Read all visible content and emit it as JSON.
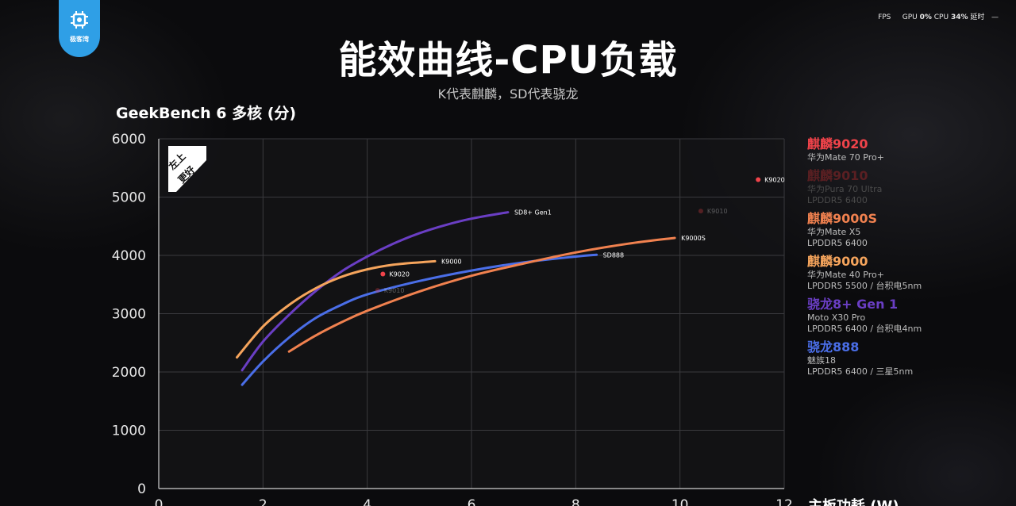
{
  "hud": {
    "fps_label": "FPS",
    "gpu_label": "GPU",
    "gpu_value": "0",
    "gpu_unit": "%",
    "cpu_label": "CPU",
    "cpu_value": "34",
    "cpu_unit": "%",
    "latency_label": "延时",
    "dash": "—"
  },
  "logo": {
    "text": "极客湾",
    "icon": "chip-icon",
    "color": "#2f9fe6"
  },
  "title": "能效曲线-CPU负载",
  "subtitle": "K代表麒麟，SD代表骁龙",
  "badge": {
    "line1": "左上",
    "line2": "更好"
  },
  "legend": [
    {
      "name": "麒麟9020",
      "color": "#f0434a",
      "dim": false,
      "lines": [
        "华为Mate 70 Pro+"
      ]
    },
    {
      "name": "麒麟9010",
      "color": "#5a1f22",
      "dim": true,
      "lines": [
        "华为Pura 70 Ultra",
        "LPDDR5 6400"
      ]
    },
    {
      "name": "麒麟9000S",
      "color": "#f0814f",
      "dim": false,
      "lines": [
        "华为Mate X5",
        "LPDDR5 6400"
      ]
    },
    {
      "name": "麒麟9000",
      "color": "#f5a45c",
      "dim": false,
      "lines": [
        "华为Mate 40 Pro+",
        "LPDDR5 5500 / 台积电5nm"
      ]
    },
    {
      "name": "骁龙8+ Gen 1",
      "color": "#6a3ec4",
      "dim": false,
      "lines": [
        "Moto X30 Pro",
        "LPDDR5 6400 / 台积电4nm"
      ]
    },
    {
      "name": "骁龙888",
      "color": "#4a6ee8",
      "dim": false,
      "lines": [
        "魅族18",
        "LPDDR5 6400 / 三星5nm"
      ]
    }
  ],
  "chart_data": {
    "type": "line",
    "title": "GeekBench 6 多核 (分)",
    "xlabel": "主板功耗 (W)",
    "ylabel": "GeekBench 6 多核 (分)",
    "xlim": [
      0,
      12
    ],
    "ylim": [
      0,
      6000
    ],
    "x_ticks": [
      0,
      2,
      4,
      6,
      8,
      10,
      12
    ],
    "y_ticks": [
      0,
      1000,
      2000,
      3000,
      4000,
      5000,
      6000
    ],
    "grid": true,
    "series": [
      {
        "name": "SD8+ Gen1",
        "color": "#6a3ec4",
        "opacity": 1,
        "points": [
          [
            1.6,
            2030
          ],
          [
            2.0,
            2520
          ],
          [
            2.5,
            2980
          ],
          [
            3.0,
            3380
          ],
          [
            3.5,
            3720
          ],
          [
            4.0,
            3980
          ],
          [
            4.5,
            4200
          ],
          [
            5.0,
            4380
          ],
          [
            5.5,
            4520
          ],
          [
            6.0,
            4630
          ],
          [
            6.7,
            4740
          ]
        ]
      },
      {
        "name": "K9000",
        "color": "#f5a45c",
        "opacity": 1,
        "points": [
          [
            1.5,
            2250
          ],
          [
            2.0,
            2780
          ],
          [
            2.5,
            3150
          ],
          [
            3.0,
            3430
          ],
          [
            3.5,
            3630
          ],
          [
            4.0,
            3760
          ],
          [
            4.5,
            3840
          ],
          [
            5.0,
            3880
          ],
          [
            5.3,
            3900
          ]
        ]
      },
      {
        "name": "SD888",
        "color": "#4a6ee8",
        "opacity": 1,
        "points": [
          [
            1.6,
            1780
          ],
          [
            2.0,
            2180
          ],
          [
            2.5,
            2590
          ],
          [
            3.0,
            2920
          ],
          [
            3.5,
            3150
          ],
          [
            4.0,
            3330
          ],
          [
            5.0,
            3560
          ],
          [
            6.0,
            3740
          ],
          [
            7.0,
            3880
          ],
          [
            8.0,
            3980
          ],
          [
            8.4,
            4010
          ]
        ]
      },
      {
        "name": "K9000S",
        "color": "#f0814f",
        "opacity": 1,
        "points": [
          [
            2.5,
            2350
          ],
          [
            3.0,
            2620
          ],
          [
            3.5,
            2850
          ],
          [
            4.0,
            3050
          ],
          [
            5.0,
            3380
          ],
          [
            6.0,
            3650
          ],
          [
            7.0,
            3860
          ],
          [
            8.0,
            4050
          ],
          [
            9.0,
            4200
          ],
          [
            9.9,
            4300
          ]
        ]
      }
    ],
    "points": [
      {
        "name": "K9020",
        "x": 4.3,
        "y": 3680,
        "color": "#f0434a",
        "opacity": 1
      },
      {
        "name": "K9010",
        "x": 4.2,
        "y": 3400,
        "color": "#f0434a",
        "opacity": 0.3
      },
      {
        "name": "K9010",
        "x": 10.4,
        "y": 4760,
        "color": "#f0434a",
        "opacity": 0.3
      },
      {
        "name": "K9020",
        "x": 11.5,
        "y": 5300,
        "color": "#f0434a",
        "opacity": 1
      }
    ]
  }
}
